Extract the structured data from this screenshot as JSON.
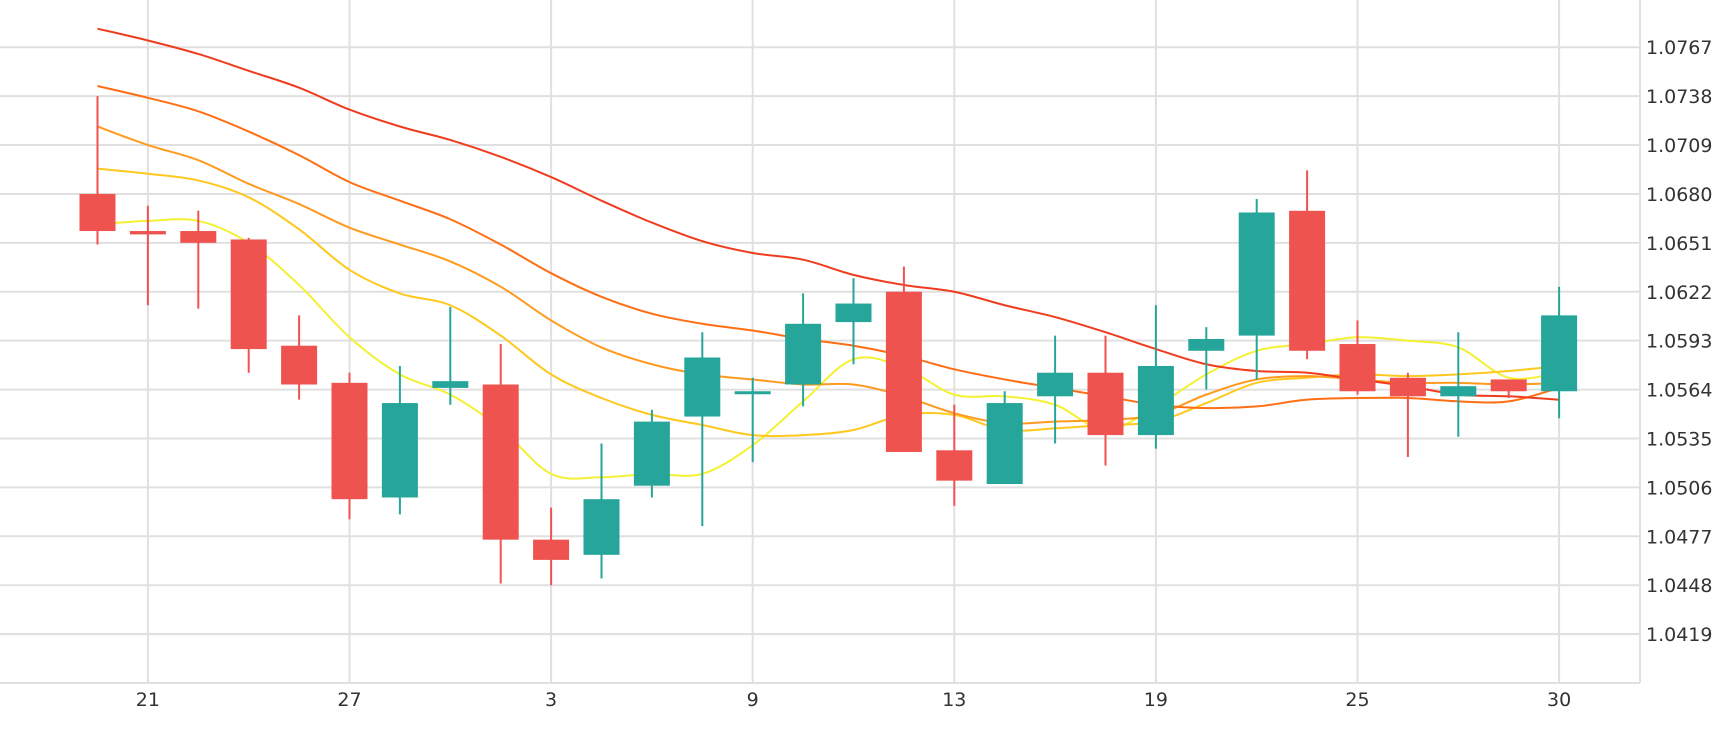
{
  "chart_data": {
    "type": "candlestick",
    "title": "",
    "xlabel": "",
    "ylabel": "",
    "ylim": [
      1.039,
      1.0795
    ],
    "grid": true,
    "legend": "none",
    "y_ticks": [
      "1.0767",
      "1.0738",
      "1.0709",
      "1.0680",
      "1.0651",
      "1.0622",
      "1.0593",
      "1.0564",
      "1.0535",
      "1.0506",
      "1.0477",
      "1.0448",
      "1.0419"
    ],
    "x_tick_labels": [
      "21",
      "27",
      "3",
      "9",
      "13",
      "19",
      "25",
      "30"
    ],
    "x_tick_index": [
      1,
      5,
      9,
      13,
      17,
      21,
      25,
      29
    ],
    "candles": [
      {
        "o": 1.068,
        "h": 1.0738,
        "l": 1.065,
        "c": 1.0658
      },
      {
        "o": 1.0658,
        "h": 1.0673,
        "l": 1.0614,
        "c": 1.0656
      },
      {
        "o": 1.0658,
        "h": 1.067,
        "l": 1.0612,
        "c": 1.0651
      },
      {
        "o": 1.0653,
        "h": 1.0654,
        "l": 1.0574,
        "c": 1.0588
      },
      {
        "o": 1.059,
        "h": 1.0608,
        "l": 1.0558,
        "c": 1.0567
      },
      {
        "o": 1.0568,
        "h": 1.0574,
        "l": 1.0487,
        "c": 1.0499
      },
      {
        "o": 1.05,
        "h": 1.0578,
        "l": 1.049,
        "c": 1.0556
      },
      {
        "o": 1.0565,
        "h": 1.0613,
        "l": 1.0555,
        "c": 1.0569
      },
      {
        "o": 1.0567,
        "h": 1.0591,
        "l": 1.0449,
        "c": 1.0475
      },
      {
        "o": 1.0475,
        "h": 1.0494,
        "l": 1.0448,
        "c": 1.0463
      },
      {
        "o": 1.0466,
        "h": 1.0532,
        "l": 1.0452,
        "c": 1.0499
      },
      {
        "o": 1.0507,
        "h": 1.0552,
        "l": 1.05,
        "c": 1.0545
      },
      {
        "o": 1.0548,
        "h": 1.0598,
        "l": 1.0483,
        "c": 1.0583
      },
      {
        "o": 1.0563,
        "h": 1.0571,
        "l": 1.0521,
        "c": 1.0563
      },
      {
        "o": 1.0567,
        "h": 1.0621,
        "l": 1.0554,
        "c": 1.0603
      },
      {
        "o": 1.0604,
        "h": 1.063,
        "l": 1.0579,
        "c": 1.0615
      },
      {
        "o": 1.0622,
        "h": 1.0637,
        "l": 1.0527,
        "c": 1.0527
      },
      {
        "o": 1.0528,
        "h": 1.0555,
        "l": 1.0495,
        "c": 1.051
      },
      {
        "o": 1.0508,
        "h": 1.0563,
        "l": 1.0508,
        "c": 1.0556
      },
      {
        "o": 1.056,
        "h": 1.0596,
        "l": 1.0532,
        "c": 1.0574
      },
      {
        "o": 1.0574,
        "h": 1.0596,
        "l": 1.0519,
        "c": 1.0537
      },
      {
        "o": 1.0537,
        "h": 1.0614,
        "l": 1.0529,
        "c": 1.0578
      },
      {
        "o": 1.0587,
        "h": 1.0601,
        "l": 1.0564,
        "c": 1.0594
      },
      {
        "o": 1.0596,
        "h": 1.0677,
        "l": 1.057,
        "c": 1.0669
      },
      {
        "o": 1.067,
        "h": 1.0694,
        "l": 1.0582,
        "c": 1.0587
      },
      {
        "o": 1.0591,
        "h": 1.0605,
        "l": 1.0561,
        "c": 1.0563
      },
      {
        "o": 1.0571,
        "h": 1.0574,
        "l": 1.0524,
        "c": 1.056
      },
      {
        "o": 1.056,
        "h": 1.0598,
        "l": 1.0536,
        "c": 1.0566
      },
      {
        "o": 1.057,
        "h": 1.057,
        "l": 1.0559,
        "c": 1.0563
      },
      {
        "o": 1.0563,
        "h": 1.0625,
        "l": 1.0547,
        "c": 1.0608
      }
    ],
    "moving_averages": [
      {
        "color": "#f4f032",
        "values": [
          1.0662,
          1.0664,
          1.0664,
          1.0651,
          1.0626,
          1.0595,
          1.0573,
          1.0561,
          1.0541,
          1.0514,
          1.0512,
          1.0514,
          1.0514,
          1.0531,
          1.0557,
          1.0582,
          1.0577,
          1.0561,
          1.056,
          1.0555,
          1.054,
          1.0554,
          1.0573,
          1.0587,
          1.0591,
          1.0595,
          1.0593,
          1.0589,
          1.0571,
          1.0574
        ]
      },
      {
        "color": "#ffc81e",
        "values": [
          1.0695,
          1.0692,
          1.0688,
          1.0678,
          1.0659,
          1.0635,
          1.0621,
          1.0614,
          1.0596,
          1.0573,
          1.0559,
          1.0549,
          1.0543,
          1.0537,
          1.0537,
          1.054,
          1.0549,
          1.0549,
          1.054,
          1.0541,
          1.0543,
          1.0545,
          1.0556,
          1.0568,
          1.0571,
          1.0573,
          1.0572,
          1.0573,
          1.0575,
          1.0578
        ]
      },
      {
        "color": "#ff9a1e",
        "values": [
          1.072,
          1.0709,
          1.07,
          1.0686,
          1.0674,
          1.066,
          1.065,
          1.064,
          1.0625,
          1.0605,
          1.0589,
          1.0579,
          1.0573,
          1.057,
          1.0567,
          1.0567,
          1.056,
          1.055,
          1.0544,
          1.0545,
          1.0546,
          1.0549,
          1.0561,
          1.057,
          1.0572,
          1.057,
          1.0568,
          1.0568,
          1.0567,
          1.0568
        ]
      },
      {
        "color": "#ff6e14",
        "values": [
          1.0744,
          1.0737,
          1.0729,
          1.0717,
          1.0703,
          1.0687,
          1.0676,
          1.0665,
          1.065,
          1.0633,
          1.0619,
          1.0609,
          1.0603,
          1.0599,
          1.0594,
          1.059,
          1.0584,
          1.0576,
          1.057,
          1.0565,
          1.056,
          1.0555,
          1.0553,
          1.0554,
          1.0558,
          1.0559,
          1.0559,
          1.0557,
          1.0557,
          1.0565
        ]
      },
      {
        "color": "#f03c1e",
        "values": [
          1.0778,
          1.0771,
          1.0763,
          1.0753,
          1.0743,
          1.073,
          1.072,
          1.0712,
          1.0702,
          1.069,
          1.0676,
          1.0663,
          1.0652,
          1.0645,
          1.0641,
          1.0632,
          1.0626,
          1.0622,
          1.0614,
          1.0607,
          1.0598,
          1.0588,
          1.0579,
          1.0575,
          1.0574,
          1.057,
          1.0566,
          1.0561,
          1.056,
          1.0558
        ]
      }
    ],
    "colors": {
      "up": "#26a69a",
      "down": "#ef5350",
      "grid": "#e0e0e0",
      "axis_text": "#333333"
    }
  }
}
